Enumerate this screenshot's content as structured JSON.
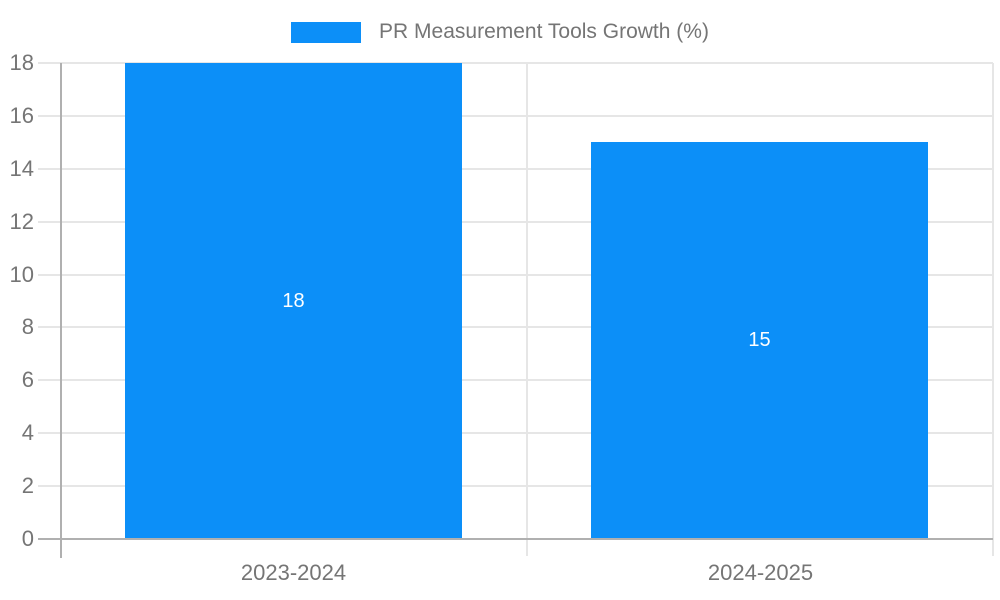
{
  "chart_data": {
    "type": "bar",
    "title": "PR Measurement Tools Growth (%)",
    "categories": [
      "2023-2024",
      "2024-2025"
    ],
    "series": [
      {
        "name": "PR Measurement Tools Growth (%)",
        "values": [
          18,
          15
        ]
      }
    ],
    "bar_value_labels": [
      "18",
      "15"
    ],
    "xlabel": "",
    "ylabel": "",
    "ylim": [
      0,
      18
    ],
    "yticks": [
      0,
      2,
      4,
      6,
      8,
      10,
      12,
      14,
      16,
      18
    ],
    "grid": true,
    "legend_position": "top-center",
    "colors": {
      "bar": "#0c8ff8",
      "bar_label": "#ffffff",
      "text": "#757575",
      "gridline": "#e6e6e6",
      "axis": "#b0b0b0",
      "background": "#ffffff"
    }
  }
}
